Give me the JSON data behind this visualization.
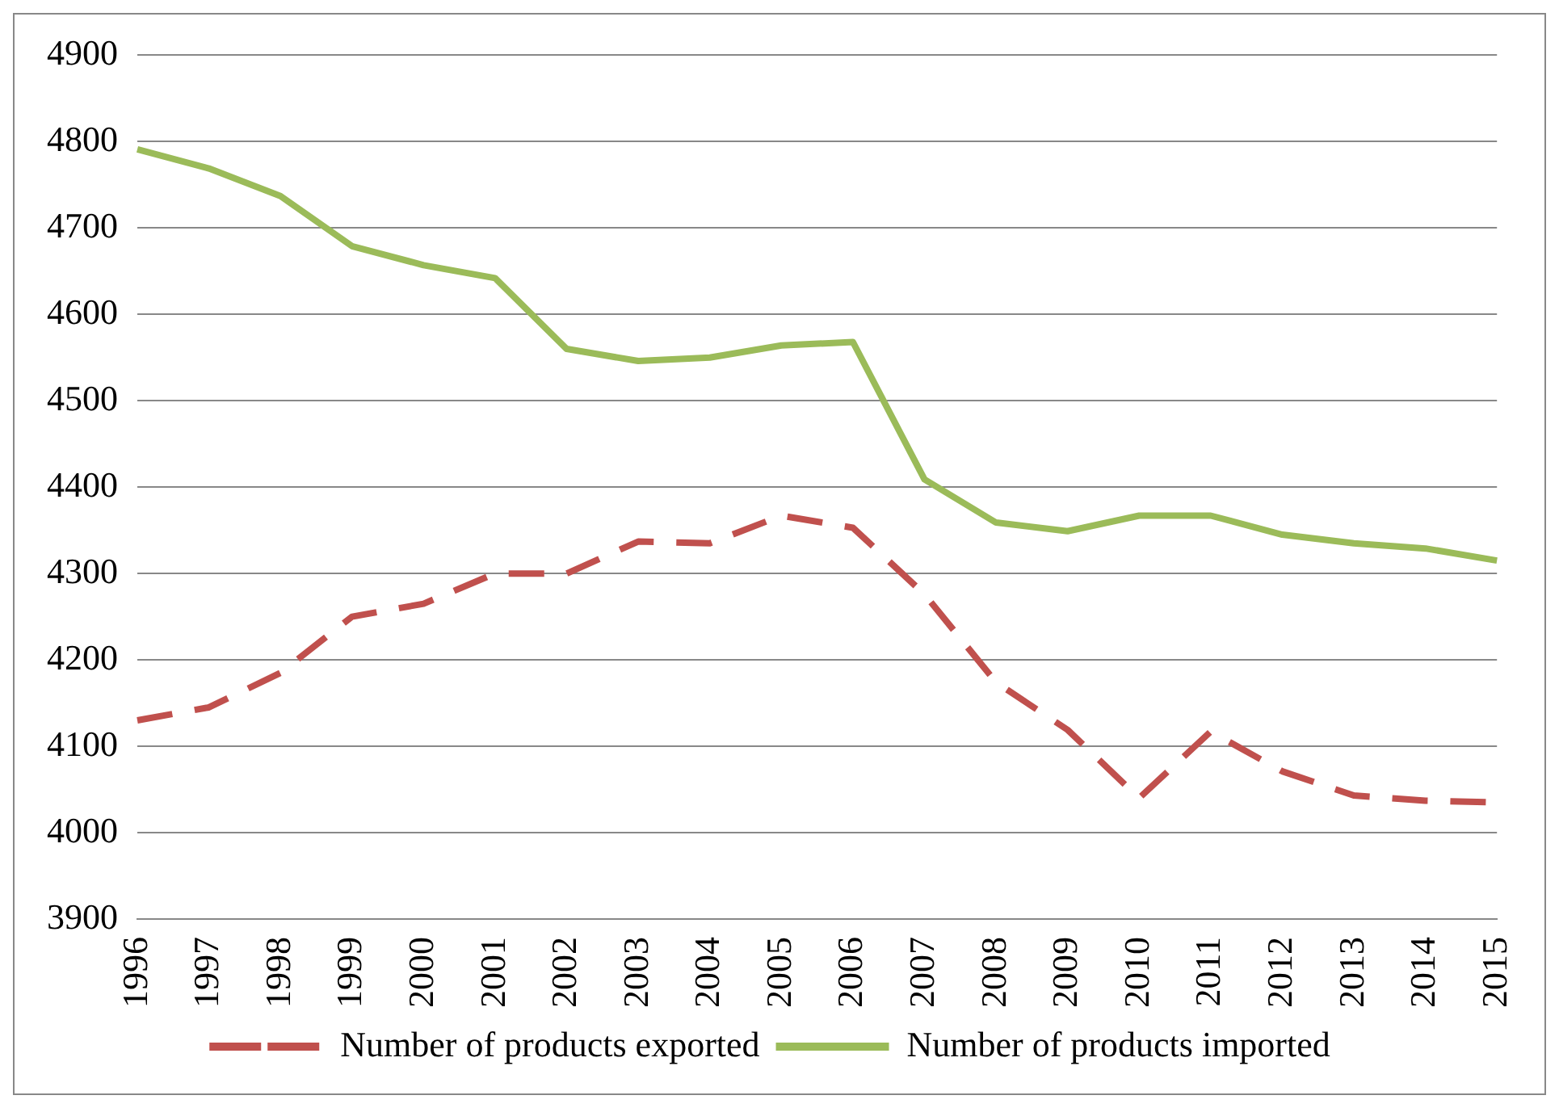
{
  "chart_data": {
    "type": "line",
    "categories": [
      "1996",
      "1997",
      "1998",
      "1999",
      "2000",
      "2001",
      "2002",
      "2003",
      "2004",
      "2005",
      "2006",
      "2007",
      "2008",
      "2009",
      "2010",
      "2011",
      "2012",
      "2013",
      "2014",
      "2015"
    ],
    "series": [
      {
        "name": "Number of products exported",
        "color": "#c0504d",
        "line_style": "dashed",
        "values": [
          4130,
          4145,
          4185,
          4250,
          4265,
          4300,
          4300,
          4337,
          4335,
          4367,
          4353,
          4276,
          4174,
          4119,
          4040,
          4117,
          4071,
          4043,
          4037,
          4035
        ]
      },
      {
        "name": "Number of products imported",
        "color": "#9bbb59",
        "line_style": "solid",
        "values": [
          4791,
          4769,
          4737,
          4679,
          4657,
          4642,
          4560,
          4546,
          4550,
          4564,
          4568,
          4409,
          4359,
          4349,
          4367,
          4367,
          4345,
          4335,
          4329,
          4315
        ]
      }
    ],
    "ylim": [
      3900,
      4900
    ],
    "yticks": [
      3900,
      4000,
      4100,
      4200,
      4300,
      4400,
      4500,
      4600,
      4700,
      4800,
      4900
    ],
    "grid": "y",
    "legend": "bottom",
    "marker": "none"
  }
}
